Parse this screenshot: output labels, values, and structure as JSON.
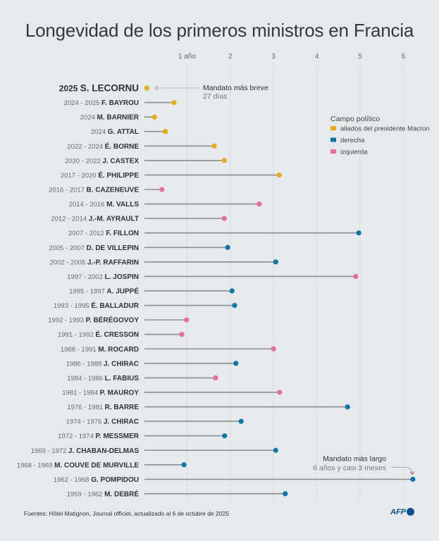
{
  "chart_data": {
    "type": "lollipop",
    "title": "Longevidad de los primeros ministros en Francia",
    "x_ticks": [
      "1 año",
      "2",
      "3",
      "4",
      "5",
      "6"
    ],
    "x_tick_values": [
      1,
      2,
      3,
      4,
      5,
      6
    ],
    "xlim": [
      0,
      6.3
    ],
    "grid": true,
    "legend": {
      "title": "Campo político",
      "placement": "right",
      "entries": [
        {
          "key": "macron",
          "label": "aliados del presidente Macron",
          "color": "#e9ab14"
        },
        {
          "key": "derecha",
          "label": "derecha",
          "color": "#0c76a6"
        },
        {
          "key": "izquierda",
          "label": "izquierda",
          "color": "#e46f9c"
        }
      ]
    },
    "rows": [
      {
        "years": "2025",
        "name": "S. LECORNU",
        "party": "macron",
        "value": 0.07
      },
      {
        "years": "2024 - 2025",
        "name": "F. BAYROU",
        "party": "macron",
        "value": 0.7
      },
      {
        "years": "2024",
        "name": "M. BARNIER",
        "party": "macron",
        "value": 0.25
      },
      {
        "years": "2024",
        "name": "G. ATTAL",
        "party": "macron",
        "value": 0.5
      },
      {
        "years": "2022 - 2024",
        "name": "É. BORNE",
        "party": "macron",
        "value": 1.63
      },
      {
        "years": "2020 - 2022",
        "name": "J. CASTEX",
        "party": "macron",
        "value": 1.86
      },
      {
        "years": "2017 - 2020",
        "name": "É. PHILIPPE",
        "party": "macron",
        "value": 3.13
      },
      {
        "years": "2016 - 2017",
        "name": "B. CAZENEUVE",
        "party": "izquierda",
        "value": 0.42
      },
      {
        "years": "2014 - 2016",
        "name": "M. VALLS",
        "party": "izquierda",
        "value": 2.67
      },
      {
        "years": "2012 - 2014",
        "name": "J.-M. AYRAULT",
        "party": "izquierda",
        "value": 1.86
      },
      {
        "years": "2007 - 2012",
        "name": "F. FILLON",
        "party": "derecha",
        "value": 4.97
      },
      {
        "years": "2005 - 2007",
        "name": "D. DE VILLEPIN",
        "party": "derecha",
        "value": 1.94
      },
      {
        "years": "2002 - 2005",
        "name": "J.-P. RAFFARIN",
        "party": "derecha",
        "value": 3.05
      },
      {
        "years": "1997 - 2002",
        "name": "L. JOSPIN",
        "party": "izquierda",
        "value": 4.9
      },
      {
        "years": "1995 - 1997",
        "name": "A. JUPPÉ",
        "party": "derecha",
        "value": 2.04
      },
      {
        "years": "1993 - 1995",
        "name": "É. BALLADUR",
        "party": "derecha",
        "value": 2.1
      },
      {
        "years": "1992 - 1993",
        "name": "P. BÉRÉGOVOY",
        "party": "izquierda",
        "value": 0.99
      },
      {
        "years": "1991 - 1992",
        "name": "É. CRESSON",
        "party": "izquierda",
        "value": 0.88
      },
      {
        "years": "1988 - 1991",
        "name": "M. ROCARD",
        "party": "izquierda",
        "value": 3.0
      },
      {
        "years": "1986 - 1988",
        "name": "J. CHIRAC",
        "party": "derecha",
        "value": 2.13
      },
      {
        "years": "1984 - 1986",
        "name": "L. FABIUS",
        "party": "izquierda",
        "value": 1.66
      },
      {
        "years": "1981 - 1984",
        "name": "P. MAUROY",
        "party": "izquierda",
        "value": 3.14
      },
      {
        "years": "1976 - 1981",
        "name": "R. BARRE",
        "party": "derecha",
        "value": 4.71
      },
      {
        "years": "1974 - 1976",
        "name": "J. CHIRAC",
        "party": "derecha",
        "value": 2.25
      },
      {
        "years": "1972 - 1974",
        "name": "P. MESSMER",
        "party": "derecha",
        "value": 1.87
      },
      {
        "years": "1969 - 1972",
        "name": "J. CHABAN-DELMAS",
        "party": "derecha",
        "value": 3.05
      },
      {
        "years": "1968 - 1969",
        "name": "M. COUVE DE MURVILLE",
        "party": "derecha",
        "value": 0.93
      },
      {
        "years": "1962 - 1968",
        "name": "G. POMPIDOU",
        "party": "derecha",
        "value": 6.22
      },
      {
        "years": "1959 - 1962",
        "name": "M. DEBRÉ",
        "party": "derecha",
        "value": 3.27
      }
    ],
    "annotations": {
      "shortest": {
        "title": "Mandato más breve",
        "detail": "27 días"
      },
      "longest": {
        "title": "Mandato más largo",
        "detail": "6 años y casi 3 meses"
      }
    }
  },
  "footer": {
    "source": "Fuentes: Hôtel Matignon, Journal officiel, actualizado al 6 de octubre de 2025",
    "logo": "AFP"
  }
}
